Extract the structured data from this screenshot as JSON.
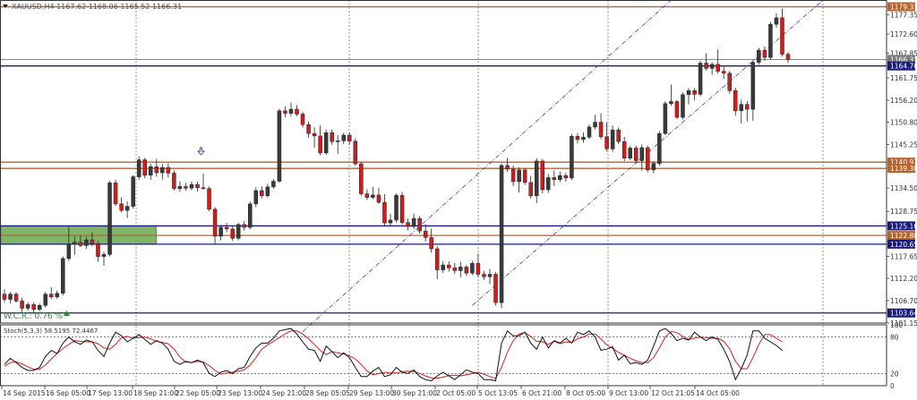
{
  "symbol_header": "XAUUSD,H4  1167.62 1168.06 1165.52 1166.31",
  "wcr_label": "W.C.R.: 0.76 %",
  "wcr_arrow_color": "#2e8b2e",
  "indicator_label": "Stoch(5,3,3) 58.5195 72.4467",
  "colors": {
    "bull": "#3a3a3a",
    "bear": "#cc1e1e",
    "support_line": "#1a1a7a",
    "resistance_line": "#b8632c",
    "price_line": "#7a7a7a",
    "channel": "#3b3bbd",
    "stoch_main": "#111111",
    "stoch_signal": "#d42020",
    "zone_fill": "#6aa84f"
  },
  "chart_data": {
    "type": "candlestick",
    "instrument": "XAUUSD",
    "timeframe": "H4",
    "last_ohlc": {
      "open": 1167.62,
      "high": 1168.06,
      "low": 1165.52,
      "close": 1166.31
    },
    "ylim": [
      1101.15,
      1181.0
    ],
    "price_axis_ticks": [
      1177.35,
      1172.6,
      1167.85,
      1161.75,
      1156.2,
      1150.8,
      1145.25,
      1134.5,
      1128.75,
      1117.65,
      1112.2,
      1106.7,
      1101.15
    ],
    "x_tick_labels": [
      "14 Sep 2015",
      "16 Sep 05:00",
      "17 Sep 13:00",
      "18 Sep 21:00",
      "22 Sep 05:00",
      "23 Sep 13:00",
      "24 Sep 21:00",
      "28 Sep 05:05",
      "29 Sep 13:00",
      "30 Sep 21:00",
      "2 Oct 05:00",
      "5 Oct 13:05",
      "6 Oct 21:00",
      "8 Oct 05:00",
      "9 Oct 13:00",
      "12 Oct 21:05",
      "14 Oct 05:00"
    ],
    "horizontal_levels": [
      {
        "value": 1179.33,
        "kind": "resistance"
      },
      {
        "value": 1166.31,
        "kind": "price"
      },
      {
        "value": 1164.7,
        "kind": "support"
      },
      {
        "value": 1140.92,
        "kind": "resistance"
      },
      {
        "value": 1139.38,
        "kind": "resistance"
      },
      {
        "value": 1125.16,
        "kind": "support"
      },
      {
        "value": 1122.8,
        "kind": "resistance"
      },
      {
        "value": 1120.65,
        "kind": "support"
      },
      {
        "value": 1103.64,
        "kind": "support"
      }
    ],
    "zone": {
      "from": 1120.65,
      "to": 1125.16,
      "bars": [
        0,
        26
      ]
    },
    "channel_lines": [
      {
        "from": {
          "bar": 51,
          "price": 1099.0
        },
        "to": {
          "bar": 114,
          "price": 1181.0
        }
      },
      {
        "from": {
          "bar": 80,
          "price": 1105.5
        },
        "to": {
          "bar": 140,
          "price": 1181.0
        }
      }
    ],
    "candles": [
      {
        "o": 1108.3,
        "h": 1109.5,
        "l": 1106.3,
        "c": 1107.0
      },
      {
        "o": 1107.0,
        "h": 1108.8,
        "l": 1106.0,
        "c": 1108.3
      },
      {
        "o": 1108.3,
        "h": 1108.8,
        "l": 1106.2,
        "c": 1106.6
      },
      {
        "o": 1106.6,
        "h": 1107.4,
        "l": 1103.9,
        "c": 1104.8
      },
      {
        "o": 1104.8,
        "h": 1106.3,
        "l": 1104.2,
        "c": 1105.7
      },
      {
        "o": 1105.7,
        "h": 1106.3,
        "l": 1103.6,
        "c": 1104.5
      },
      {
        "o": 1104.5,
        "h": 1106.0,
        "l": 1104.0,
        "c": 1105.5
      },
      {
        "o": 1105.5,
        "h": 1108.8,
        "l": 1105.0,
        "c": 1108.3
      },
      {
        "o": 1108.3,
        "h": 1110.0,
        "l": 1107.1,
        "c": 1107.6
      },
      {
        "o": 1107.6,
        "h": 1109.2,
        "l": 1107.1,
        "c": 1108.5
      },
      {
        "o": 1108.5,
        "h": 1117.6,
        "l": 1108.0,
        "c": 1117.1
      },
      {
        "o": 1117.1,
        "h": 1124.9,
        "l": 1116.5,
        "c": 1120.6
      },
      {
        "o": 1120.6,
        "h": 1122.5,
        "l": 1118.0,
        "c": 1121.1
      },
      {
        "o": 1121.1,
        "h": 1122.8,
        "l": 1119.9,
        "c": 1120.3
      },
      {
        "o": 1120.3,
        "h": 1122.5,
        "l": 1119.5,
        "c": 1121.7
      },
      {
        "o": 1121.7,
        "h": 1123.5,
        "l": 1120.1,
        "c": 1120.8
      },
      {
        "o": 1120.8,
        "h": 1121.4,
        "l": 1116.3,
        "c": 1117.6
      },
      {
        "o": 1117.6,
        "h": 1118.8,
        "l": 1115.3,
        "c": 1118.1
      },
      {
        "o": 1118.1,
        "h": 1136.3,
        "l": 1117.6,
        "c": 1135.8
      },
      {
        "o": 1135.8,
        "h": 1136.6,
        "l": 1130.1,
        "c": 1130.6
      },
      {
        "o": 1130.6,
        "h": 1132.2,
        "l": 1128.5,
        "c": 1129.0
      },
      {
        "o": 1129.0,
        "h": 1131.2,
        "l": 1127.1,
        "c": 1130.0
      },
      {
        "o": 1130.0,
        "h": 1137.7,
        "l": 1129.4,
        "c": 1137.3
      },
      {
        "o": 1137.3,
        "h": 1142.4,
        "l": 1136.6,
        "c": 1141.5
      },
      {
        "o": 1141.5,
        "h": 1142.0,
        "l": 1136.9,
        "c": 1137.7
      },
      {
        "o": 1137.7,
        "h": 1140.5,
        "l": 1136.5,
        "c": 1139.8
      },
      {
        "o": 1139.8,
        "h": 1141.7,
        "l": 1137.3,
        "c": 1138.3
      },
      {
        "o": 1138.3,
        "h": 1140.5,
        "l": 1136.6,
        "c": 1139.6
      },
      {
        "o": 1139.6,
        "h": 1140.7,
        "l": 1137.1,
        "c": 1138.2
      },
      {
        "o": 1138.2,
        "h": 1138.9,
        "l": 1133.9,
        "c": 1134.4
      },
      {
        "o": 1134.4,
        "h": 1136.2,
        "l": 1133.6,
        "c": 1134.9
      },
      {
        "o": 1134.9,
        "h": 1135.8,
        "l": 1133.9,
        "c": 1134.5
      },
      {
        "o": 1134.5,
        "h": 1136.1,
        "l": 1134.0,
        "c": 1135.4
      },
      {
        "o": 1135.4,
        "h": 1136.1,
        "l": 1133.6,
        "c": 1134.6
      },
      {
        "o": 1134.6,
        "h": 1138.1,
        "l": 1134.1,
        "c": 1134.4
      },
      {
        "o": 1134.4,
        "h": 1134.9,
        "l": 1128.8,
        "c": 1129.3
      },
      {
        "o": 1129.3,
        "h": 1129.8,
        "l": 1120.6,
        "c": 1122.6
      },
      {
        "o": 1122.6,
        "h": 1125.4,
        "l": 1121.6,
        "c": 1124.8
      },
      {
        "o": 1124.8,
        "h": 1125.9,
        "l": 1123.6,
        "c": 1124.4
      },
      {
        "o": 1124.4,
        "h": 1125.0,
        "l": 1121.5,
        "c": 1122.1
      },
      {
        "o": 1122.1,
        "h": 1126.0,
        "l": 1121.6,
        "c": 1125.5
      },
      {
        "o": 1125.5,
        "h": 1126.4,
        "l": 1124.0,
        "c": 1124.8
      },
      {
        "o": 1124.8,
        "h": 1131.2,
        "l": 1124.3,
        "c": 1130.6
      },
      {
        "o": 1130.6,
        "h": 1134.7,
        "l": 1129.8,
        "c": 1133.9
      },
      {
        "o": 1133.9,
        "h": 1134.9,
        "l": 1131.9,
        "c": 1132.6
      },
      {
        "o": 1132.6,
        "h": 1135.6,
        "l": 1132.1,
        "c": 1134.8
      },
      {
        "o": 1134.8,
        "h": 1136.8,
        "l": 1134.3,
        "c": 1136.2
      },
      {
        "o": 1136.2,
        "h": 1154.1,
        "l": 1135.8,
        "c": 1153.6
      },
      {
        "o": 1153.6,
        "h": 1154.7,
        "l": 1152.0,
        "c": 1153.0
      },
      {
        "o": 1153.0,
        "h": 1155.7,
        "l": 1152.2,
        "c": 1154.0
      },
      {
        "o": 1154.0,
        "h": 1155.0,
        "l": 1152.3,
        "c": 1152.8
      },
      {
        "o": 1152.8,
        "h": 1153.4,
        "l": 1149.5,
        "c": 1150.2
      },
      {
        "o": 1150.2,
        "h": 1151.0,
        "l": 1147.0,
        "c": 1148.0
      },
      {
        "o": 1148.0,
        "h": 1149.5,
        "l": 1144.5,
        "c": 1147.4
      },
      {
        "o": 1147.4,
        "h": 1150.0,
        "l": 1142.6,
        "c": 1143.2
      },
      {
        "o": 1143.2,
        "h": 1149.0,
        "l": 1142.7,
        "c": 1148.2
      },
      {
        "o": 1148.2,
        "h": 1149.0,
        "l": 1145.2,
        "c": 1146.0
      },
      {
        "o": 1146.0,
        "h": 1147.6,
        "l": 1143.0,
        "c": 1146.2
      },
      {
        "o": 1146.2,
        "h": 1148.2,
        "l": 1145.4,
        "c": 1147.6
      },
      {
        "o": 1147.6,
        "h": 1148.3,
        "l": 1145.2,
        "c": 1146.1
      },
      {
        "o": 1146.1,
        "h": 1146.8,
        "l": 1140.0,
        "c": 1140.5
      },
      {
        "o": 1140.5,
        "h": 1141.0,
        "l": 1132.6,
        "c": 1133.1
      },
      {
        "o": 1133.1,
        "h": 1134.2,
        "l": 1131.5,
        "c": 1132.2
      },
      {
        "o": 1132.2,
        "h": 1134.8,
        "l": 1131.8,
        "c": 1132.8
      },
      {
        "o": 1132.8,
        "h": 1134.6,
        "l": 1130.6,
        "c": 1131.0
      },
      {
        "o": 1131.0,
        "h": 1133.0,
        "l": 1125.1,
        "c": 1125.9
      },
      {
        "o": 1125.9,
        "h": 1128.2,
        "l": 1125.2,
        "c": 1126.6
      },
      {
        "o": 1126.6,
        "h": 1133.2,
        "l": 1126.0,
        "c": 1132.7
      },
      {
        "o": 1132.7,
        "h": 1133.6,
        "l": 1125.5,
        "c": 1126.0
      },
      {
        "o": 1126.0,
        "h": 1127.0,
        "l": 1124.1,
        "c": 1125.0
      },
      {
        "o": 1125.0,
        "h": 1128.2,
        "l": 1124.4,
        "c": 1127.0
      },
      {
        "o": 1127.0,
        "h": 1127.6,
        "l": 1123.3,
        "c": 1123.9
      },
      {
        "o": 1123.9,
        "h": 1125.6,
        "l": 1121.3,
        "c": 1122.3
      },
      {
        "o": 1122.3,
        "h": 1124.5,
        "l": 1118.5,
        "c": 1119.5
      },
      {
        "o": 1119.5,
        "h": 1120.2,
        "l": 1112.0,
        "c": 1114.3
      },
      {
        "o": 1114.3,
        "h": 1116.4,
        "l": 1113.5,
        "c": 1115.5
      },
      {
        "o": 1115.5,
        "h": 1116.4,
        "l": 1113.9,
        "c": 1114.8
      },
      {
        "o": 1114.8,
        "h": 1116.0,
        "l": 1113.3,
        "c": 1114.1
      },
      {
        "o": 1114.1,
        "h": 1116.3,
        "l": 1112.5,
        "c": 1115.0
      },
      {
        "o": 1115.0,
        "h": 1115.5,
        "l": 1112.8,
        "c": 1113.5
      },
      {
        "o": 1113.5,
        "h": 1116.5,
        "l": 1113.0,
        "c": 1115.9
      },
      {
        "o": 1115.9,
        "h": 1118.3,
        "l": 1112.5,
        "c": 1113.2
      },
      {
        "o": 1113.2,
        "h": 1114.0,
        "l": 1111.8,
        "c": 1112.6
      },
      {
        "o": 1112.6,
        "h": 1114.5,
        "l": 1110.8,
        "c": 1113.2
      },
      {
        "o": 1113.2,
        "h": 1113.8,
        "l": 1105.5,
        "c": 1106.2
      },
      {
        "o": 1106.2,
        "h": 1140.6,
        "l": 1104.8,
        "c": 1140.1
      },
      {
        "o": 1140.1,
        "h": 1142.0,
        "l": 1138.5,
        "c": 1139.2
      },
      {
        "o": 1139.2,
        "h": 1140.1,
        "l": 1135.0,
        "c": 1136.1
      },
      {
        "o": 1136.1,
        "h": 1139.6,
        "l": 1133.4,
        "c": 1139.0
      },
      {
        "o": 1139.0,
        "h": 1139.5,
        "l": 1135.3,
        "c": 1135.9
      },
      {
        "o": 1135.9,
        "h": 1137.5,
        "l": 1131.9,
        "c": 1132.6
      },
      {
        "o": 1132.6,
        "h": 1141.9,
        "l": 1130.8,
        "c": 1141.2
      },
      {
        "o": 1141.2,
        "h": 1141.7,
        "l": 1133.2,
        "c": 1134.1
      },
      {
        "o": 1134.1,
        "h": 1138.0,
        "l": 1133.3,
        "c": 1137.1
      },
      {
        "o": 1137.1,
        "h": 1138.8,
        "l": 1135.0,
        "c": 1136.6
      },
      {
        "o": 1136.6,
        "h": 1138.6,
        "l": 1136.0,
        "c": 1137.6
      },
      {
        "o": 1137.6,
        "h": 1138.3,
        "l": 1136.1,
        "c": 1137.0
      },
      {
        "o": 1137.0,
        "h": 1147.9,
        "l": 1136.5,
        "c": 1147.3
      },
      {
        "o": 1147.3,
        "h": 1148.1,
        "l": 1145.5,
        "c": 1146.5
      },
      {
        "o": 1146.5,
        "h": 1148.3,
        "l": 1145.7,
        "c": 1147.1
      },
      {
        "o": 1147.1,
        "h": 1150.2,
        "l": 1146.6,
        "c": 1149.6
      },
      {
        "o": 1149.6,
        "h": 1152.6,
        "l": 1149.0,
        "c": 1150.8
      },
      {
        "o": 1150.8,
        "h": 1153.0,
        "l": 1146.6,
        "c": 1147.2
      },
      {
        "o": 1147.2,
        "h": 1150.8,
        "l": 1143.6,
        "c": 1144.2
      },
      {
        "o": 1144.2,
        "h": 1150.0,
        "l": 1143.5,
        "c": 1148.9
      },
      {
        "o": 1148.9,
        "h": 1149.5,
        "l": 1145.4,
        "c": 1146.0
      },
      {
        "o": 1146.0,
        "h": 1147.2,
        "l": 1141.2,
        "c": 1141.9
      },
      {
        "o": 1141.9,
        "h": 1145.0,
        "l": 1141.4,
        "c": 1144.4
      },
      {
        "o": 1144.4,
        "h": 1145.0,
        "l": 1140.6,
        "c": 1141.3
      },
      {
        "o": 1141.3,
        "h": 1145.3,
        "l": 1138.8,
        "c": 1144.5
      },
      {
        "o": 1144.5,
        "h": 1145.0,
        "l": 1138.4,
        "c": 1139.0
      },
      {
        "o": 1139.0,
        "h": 1141.2,
        "l": 1138.2,
        "c": 1140.6
      },
      {
        "o": 1140.6,
        "h": 1148.6,
        "l": 1140.0,
        "c": 1148.0
      },
      {
        "o": 1148.0,
        "h": 1156.0,
        "l": 1147.6,
        "c": 1155.4
      },
      {
        "o": 1155.4,
        "h": 1160.1,
        "l": 1154.9,
        "c": 1155.9
      },
      {
        "o": 1155.9,
        "h": 1156.3,
        "l": 1151.6,
        "c": 1152.0
      },
      {
        "o": 1152.0,
        "h": 1158.2,
        "l": 1151.5,
        "c": 1157.6
      },
      {
        "o": 1157.6,
        "h": 1159.2,
        "l": 1155.2,
        "c": 1158.6
      },
      {
        "o": 1158.6,
        "h": 1159.2,
        "l": 1156.2,
        "c": 1157.7
      },
      {
        "o": 1157.7,
        "h": 1166.0,
        "l": 1157.2,
        "c": 1165.4
      },
      {
        "o": 1165.4,
        "h": 1167.8,
        "l": 1163.6,
        "c": 1164.1
      },
      {
        "o": 1164.1,
        "h": 1165.6,
        "l": 1162.5,
        "c": 1165.1
      },
      {
        "o": 1165.1,
        "h": 1168.8,
        "l": 1162.8,
        "c": 1163.4
      },
      {
        "o": 1163.4,
        "h": 1164.5,
        "l": 1161.5,
        "c": 1162.9
      },
      {
        "o": 1162.9,
        "h": 1163.5,
        "l": 1157.9,
        "c": 1158.6
      },
      {
        "o": 1158.6,
        "h": 1159.3,
        "l": 1152.4,
        "c": 1153.6
      },
      {
        "o": 1153.6,
        "h": 1156.4,
        "l": 1150.5,
        "c": 1155.2
      },
      {
        "o": 1155.2,
        "h": 1156.0,
        "l": 1151.0,
        "c": 1154.0
      },
      {
        "o": 1154.0,
        "h": 1166.1,
        "l": 1151.1,
        "c": 1165.6
      },
      {
        "o": 1165.6,
        "h": 1169.2,
        "l": 1165.0,
        "c": 1168.6
      },
      {
        "o": 1168.6,
        "h": 1169.5,
        "l": 1165.9,
        "c": 1166.8
      },
      {
        "o": 1166.8,
        "h": 1175.6,
        "l": 1166.2,
        "c": 1175.0
      },
      {
        "o": 1175.0,
        "h": 1177.7,
        "l": 1174.2,
        "c": 1176.6
      },
      {
        "o": 1176.6,
        "h": 1178.9,
        "l": 1167.0,
        "c": 1167.6
      },
      {
        "o": 1167.6,
        "h": 1168.1,
        "l": 1165.5,
        "c": 1166.3
      }
    ],
    "stochastic": {
      "name": "Stoch(5,3,3)",
      "main": [
        35,
        45,
        38,
        30,
        25,
        25,
        30,
        48,
        58,
        53,
        70,
        80,
        72,
        68,
        75,
        72,
        58,
        48,
        70,
        88,
        82,
        72,
        78,
        84,
        76,
        68,
        74,
        70,
        60,
        40,
        35,
        40,
        38,
        42,
        38,
        20,
        15,
        22,
        25,
        20,
        28,
        30,
        48,
        62,
        70,
        70,
        78,
        90,
        92,
        94,
        85,
        72,
        60,
        58,
        40,
        65,
        56,
        46,
        54,
        46,
        30,
        15,
        15,
        24,
        30,
        15,
        18,
        30,
        22,
        20,
        26,
        15,
        10,
        8,
        16,
        22,
        16,
        10,
        18,
        26,
        22,
        20,
        10,
        10,
        8,
        70,
        90,
        82,
        82,
        88,
        70,
        60,
        80,
        62,
        74,
        70,
        78,
        70,
        88,
        84,
        90,
        80,
        58,
        60,
        64,
        42,
        50,
        36,
        38,
        35,
        42,
        65,
        90,
        94,
        86,
        74,
        78,
        75,
        88,
        80,
        74,
        80,
        76,
        60,
        40,
        10,
        28,
        50,
        90,
        90,
        78,
        72,
        66,
        58
      ],
      "signal": [
        32,
        38,
        39,
        36,
        31,
        27,
        27,
        34,
        44,
        53,
        61,
        68,
        74,
        73,
        72,
        72,
        69,
        62,
        60,
        68,
        79,
        81,
        78,
        79,
        80,
        77,
        73,
        71,
        69,
        60,
        47,
        39,
        38,
        40,
        39,
        33,
        25,
        19,
        21,
        22,
        24,
        26,
        34,
        46,
        60,
        67,
        73,
        79,
        85,
        90,
        90,
        85,
        77,
        68,
        58,
        51,
        56,
        54,
        52,
        49,
        44,
        35,
        24,
        18,
        20,
        22,
        21,
        21,
        23,
        24,
        23,
        20,
        16,
        13,
        12,
        14,
        17,
        17,
        16,
        18,
        20,
        22,
        19,
        15,
        12,
        30,
        55,
        74,
        85,
        87,
        81,
        73,
        72,
        68,
        73,
        69,
        72,
        71,
        77,
        80,
        85,
        85,
        77,
        67,
        61,
        55,
        50,
        45,
        41,
        38,
        38,
        46,
        62,
        80,
        89,
        87,
        81,
        76,
        78,
        80,
        79,
        78,
        78,
        73,
        61,
        40,
        28,
        28,
        46,
        68,
        84,
        84,
        78,
        72
      ]
    },
    "stoch_levels": [
      80,
      20
    ],
    "stoch_axis_ticks": [
      100,
      80,
      20,
      0
    ]
  }
}
